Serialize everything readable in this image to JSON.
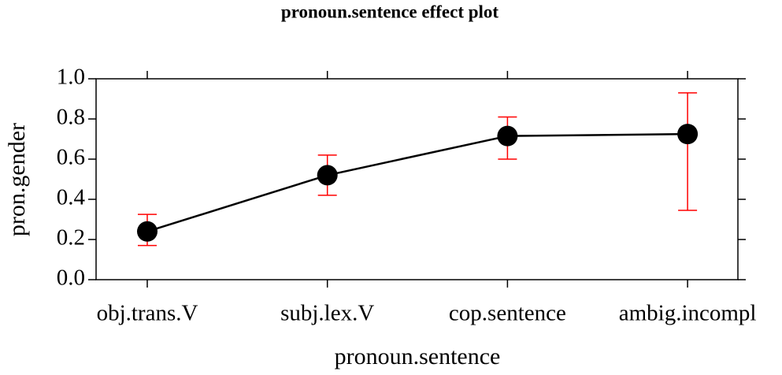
{
  "chart_data": {
    "type": "effect",
    "title": "pronoun.sentence effect plot",
    "x_label": "pronoun.sentence",
    "y_label": "pron.gender",
    "categories": [
      "obj.trans.V",
      "subj.lex.V",
      "cop.sentence",
      "ambig.incompl"
    ],
    "series": [
      {
        "name": "pron.gender",
        "color": "#000000",
        "error_color": "#ff0000",
        "values": [
          0.24,
          0.52,
          0.715,
          0.725
        ],
        "lower": [
          0.17,
          0.42,
          0.6,
          0.345
        ],
        "upper": [
          0.325,
          0.62,
          0.81,
          0.93
        ]
      }
    ],
    "ylim": [
      0,
      1
    ],
    "yticks": [
      {
        "value": 0,
        "label": "0.0"
      },
      0.2,
      0.4,
      0.6,
      0.8,
      {
        "value": 1,
        "label": "1.0"
      }
    ]
  }
}
